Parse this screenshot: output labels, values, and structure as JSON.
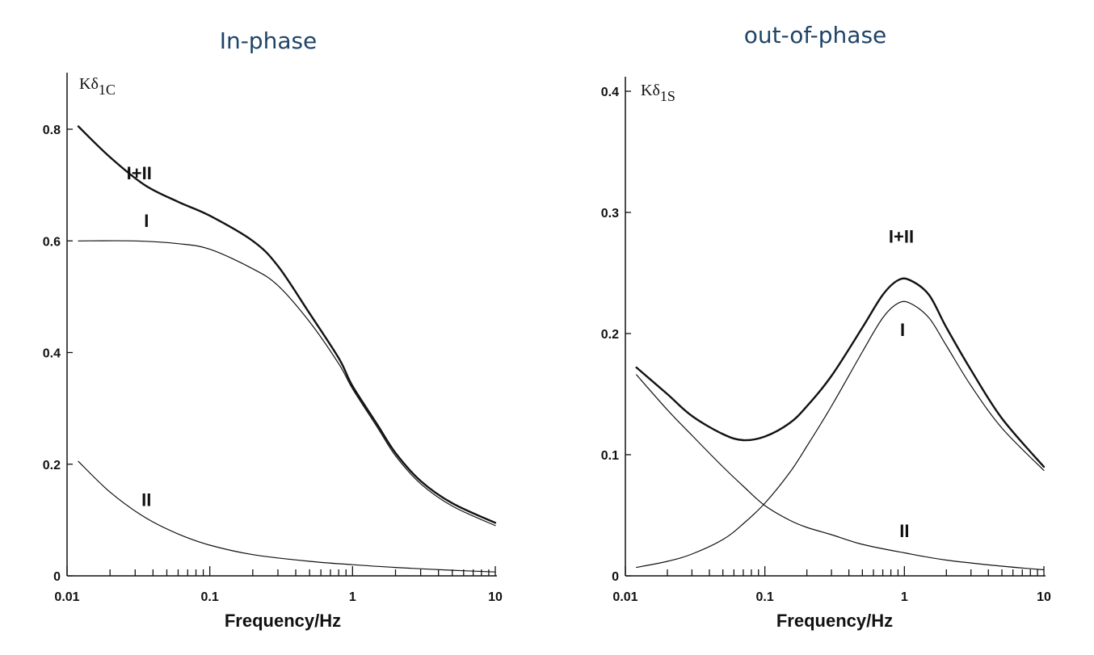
{
  "chart_data": [
    {
      "type": "line",
      "title": "In-phase",
      "xlabel": "Frequency/Hz",
      "ylabel": "Kδ1C",
      "ylabel_main": "Kδ",
      "ylabel_sub": "1C",
      "xscale": "log",
      "xlim": [
        0.01,
        10
      ],
      "ylim": [
        0,
        0.8
      ],
      "x_ticks": [
        "0.01",
        "0.1",
        "1",
        "10"
      ],
      "y_ticks": [
        "0",
        "0.2",
        "0.4",
        "0.6",
        "0.8"
      ],
      "grid": false,
      "series": [
        {
          "name": "I+II",
          "stroke": 2.4,
          "x": [
            0.012,
            0.02,
            0.035,
            0.06,
            0.1,
            0.2,
            0.3,
            0.5,
            0.8,
            1,
            1.5,
            2,
            3,
            5,
            10
          ],
          "y": [
            0.805,
            0.75,
            0.7,
            0.67,
            0.645,
            0.6,
            0.555,
            0.47,
            0.39,
            0.34,
            0.27,
            0.22,
            0.17,
            0.13,
            0.095
          ]
        },
        {
          "name": "I",
          "stroke": 1.2,
          "x": [
            0.012,
            0.03,
            0.06,
            0.1,
            0.2,
            0.3,
            0.5,
            0.8,
            1,
            1.5,
            2,
            3,
            5,
            10
          ],
          "y": [
            0.6,
            0.6,
            0.595,
            0.585,
            0.55,
            0.52,
            0.455,
            0.38,
            0.335,
            0.265,
            0.215,
            0.165,
            0.125,
            0.09
          ]
        },
        {
          "name": "II",
          "stroke": 1.2,
          "x": [
            0.012,
            0.02,
            0.035,
            0.06,
            0.1,
            0.2,
            0.5,
            1,
            2,
            5,
            10
          ],
          "y": [
            0.205,
            0.15,
            0.105,
            0.075,
            0.055,
            0.038,
            0.026,
            0.02,
            0.015,
            0.01,
            0.007
          ]
        }
      ],
      "annotations": [
        {
          "text": "I+II",
          "x": 0.032,
          "y": 0.71
        },
        {
          "text": "I",
          "x": 0.036,
          "y": 0.625
        },
        {
          "text": "II",
          "x": 0.036,
          "y": 0.125
        }
      ]
    },
    {
      "type": "line",
      "title": "out-of-phase",
      "xlabel": "Frequency/Hz",
      "ylabel": "Kδ1S",
      "ylabel_main": "Kδ",
      "ylabel_sub": "1S",
      "xscale": "log",
      "xlim": [
        0.01,
        10
      ],
      "ylim": [
        0,
        0.4
      ],
      "x_ticks": [
        "0.01",
        "0.1",
        "1",
        "10"
      ],
      "y_ticks": [
        "0",
        "0.1",
        "0.2",
        "0.3",
        "0.4"
      ],
      "grid": false,
      "series": [
        {
          "name": "I+II",
          "stroke": 2.4,
          "x": [
            0.012,
            0.02,
            0.03,
            0.05,
            0.07,
            0.1,
            0.15,
            0.2,
            0.3,
            0.5,
            0.7,
            0.9,
            1.1,
            1.5,
            2,
            3,
            5,
            10
          ],
          "y": [
            0.172,
            0.15,
            0.132,
            0.117,
            0.112,
            0.115,
            0.126,
            0.14,
            0.165,
            0.205,
            0.232,
            0.244,
            0.244,
            0.232,
            0.205,
            0.17,
            0.13,
            0.09
          ]
        },
        {
          "name": "I",
          "stroke": 1.2,
          "x": [
            0.012,
            0.02,
            0.03,
            0.05,
            0.07,
            0.1,
            0.15,
            0.2,
            0.3,
            0.5,
            0.7,
            0.9,
            1.1,
            1.5,
            2,
            3,
            5,
            10
          ],
          "y": [
            0.007,
            0.012,
            0.018,
            0.03,
            0.043,
            0.06,
            0.085,
            0.107,
            0.14,
            0.185,
            0.213,
            0.225,
            0.225,
            0.213,
            0.19,
            0.157,
            0.122,
            0.087
          ]
        },
        {
          "name": "II",
          "stroke": 1.2,
          "x": [
            0.012,
            0.02,
            0.03,
            0.05,
            0.07,
            0.1,
            0.15,
            0.2,
            0.3,
            0.5,
            1,
            2,
            5,
            10
          ],
          "y": [
            0.166,
            0.137,
            0.116,
            0.09,
            0.074,
            0.058,
            0.046,
            0.04,
            0.034,
            0.026,
            0.019,
            0.013,
            0.008,
            0.005
          ]
        }
      ],
      "annotations": [
        {
          "text": "I+II",
          "x": 0.95,
          "y": 0.275
        },
        {
          "text": "I",
          "x": 0.97,
          "y": 0.198
        },
        {
          "text": "II",
          "x": 1.0,
          "y": 0.032
        }
      ]
    }
  ]
}
